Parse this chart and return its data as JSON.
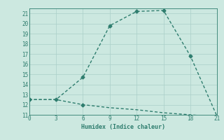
{
  "xlabel": "Humidex (Indice chaleur)",
  "line1_x": [
    0,
    3,
    6,
    9,
    12,
    15,
    18,
    21
  ],
  "line1_y": [
    12.5,
    12.5,
    12.0,
    11.7,
    11.5,
    11.2,
    11.0,
    10.8
  ],
  "line2_x": [
    0,
    3,
    6,
    9,
    12,
    15,
    18,
    21
  ],
  "line2_y": [
    12.5,
    12.5,
    14.7,
    19.8,
    21.2,
    21.3,
    16.8,
    10.8
  ],
  "xlim": [
    0,
    21
  ],
  "ylim": [
    11,
    21.5
  ],
  "xticks": [
    0,
    3,
    6,
    9,
    12,
    15,
    18,
    21
  ],
  "yticks": [
    11,
    12,
    13,
    14,
    15,
    16,
    17,
    18,
    19,
    20,
    21
  ],
  "line_color": "#2e7d6e",
  "bg_color": "#cce8e0",
  "grid_color": "#aacfc8",
  "marker": "D",
  "marker_size": 2.5,
  "line_width": 1.0
}
